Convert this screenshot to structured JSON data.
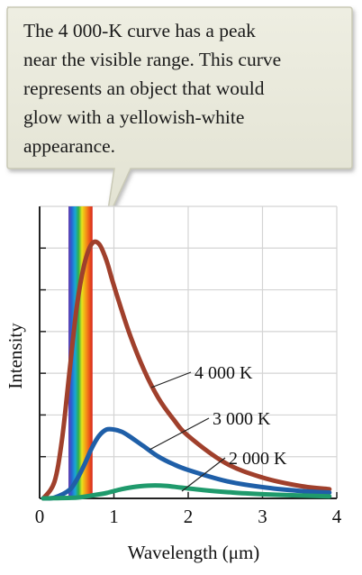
{
  "callout": {
    "text": "The 4 000-K curve has a peak\nnear the visible range. This curve\nrepresents an object that would\nglow with a yellowish-white\nappearance."
  },
  "chart_data": {
    "type": "line",
    "title": "",
    "xlabel": "Wavelength (μm)",
    "ylabel": "Intensity",
    "xlim": [
      0,
      4
    ],
    "ylim": [
      0,
      7
    ],
    "x_ticks": [
      "0",
      "1",
      "2",
      "3",
      "4"
    ],
    "grid": true,
    "visible_band_um": [
      0.4,
      0.7
    ],
    "series": [
      {
        "name": "4 000 K",
        "color": "#a0402c",
        "x": [
          0.05,
          0.2,
          0.3,
          0.4,
          0.5,
          0.6,
          0.7,
          0.8,
          0.9,
          1.0,
          1.2,
          1.4,
          1.6,
          1.8,
          2.0,
          2.5,
          3.0,
          3.5,
          3.9
        ],
        "y": [
          0.0,
          0.4,
          1.4,
          3.0,
          4.6,
          5.6,
          6.1,
          6.1,
          5.7,
          5.1,
          4.0,
          3.1,
          2.4,
          1.9,
          1.5,
          0.85,
          0.5,
          0.3,
          0.22
        ]
      },
      {
        "name": "3 000 K",
        "color": "#1f5fa8",
        "x": [
          0.05,
          0.2,
          0.4,
          0.5,
          0.6,
          0.7,
          0.8,
          0.9,
          1.0,
          1.1,
          1.2,
          1.4,
          1.6,
          1.8,
          2.0,
          2.5,
          3.0,
          3.5,
          3.9
        ],
        "y": [
          0.0,
          0.02,
          0.2,
          0.45,
          0.8,
          1.2,
          1.5,
          1.65,
          1.65,
          1.6,
          1.5,
          1.25,
          1.0,
          0.82,
          0.68,
          0.42,
          0.27,
          0.18,
          0.14
        ]
      },
      {
        "name": "2 000 K",
        "color": "#1f9a6c",
        "x": [
          0.05,
          0.5,
          0.7,
          0.9,
          1.1,
          1.3,
          1.5,
          1.7,
          1.9,
          2.2,
          2.6,
          3.0,
          3.5,
          3.9
        ],
        "y": [
          0.0,
          0.02,
          0.07,
          0.13,
          0.22,
          0.28,
          0.31,
          0.3,
          0.26,
          0.2,
          0.14,
          0.1,
          0.07,
          0.05
        ]
      }
    ]
  }
}
